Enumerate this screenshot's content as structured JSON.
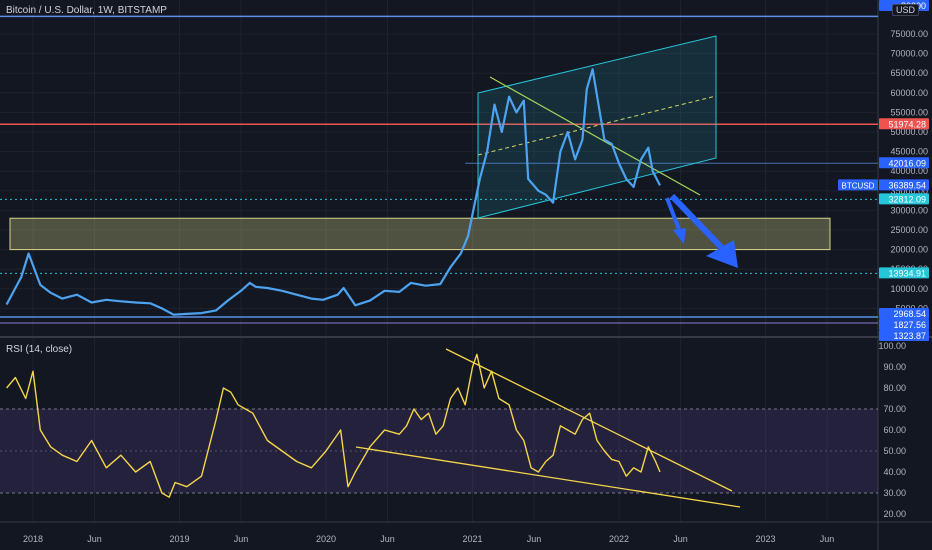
{
  "header": {
    "title": "Bitcoin / U.S. Dollar, 1W, BITSTAMP",
    "currency": "USD",
    "rsi_title": "RSI (14, close)"
  },
  "colors": {
    "background": "#131722",
    "price_line": "#4ea3f1",
    "rsi_line": "#f5d54a",
    "rsi_band": "#7e57c2",
    "channel": "#26c6da",
    "support_zone": "#c2c07a",
    "arrows": "#2962ff",
    "resistance": "#ef5350",
    "dotted_level": "#26c6da",
    "trendline": "#a5d65a"
  },
  "chart_data": [
    {
      "type": "line",
      "title": "Bitcoin / U.S. Dollar, 1W, BITSTAMP",
      "series": [
        {
          "name": "BTCUSD",
          "x": [
            2017.82,
            2017.92,
            2017.97,
            2018.05,
            2018.12,
            2018.2,
            2018.3,
            2018.4,
            2018.5,
            2018.6,
            2018.7,
            2018.8,
            2018.88,
            2018.96,
            2019.05,
            2019.15,
            2019.25,
            2019.33,
            2019.42,
            2019.48,
            2019.52,
            2019.6,
            2019.7,
            2019.8,
            2019.9,
            2019.98,
            2020.08,
            2020.12,
            2020.2,
            2020.3,
            2020.4,
            2020.5,
            2020.58,
            2020.68,
            2020.78,
            2020.85,
            2020.92,
            2020.97,
            2021.0,
            2021.05,
            2021.1,
            2021.15,
            2021.2,
            2021.25,
            2021.3,
            2021.35,
            2021.38,
            2021.45,
            2021.5,
            2021.55,
            2021.6,
            2021.65,
            2021.7,
            2021.75,
            2021.78,
            2021.82,
            2021.86,
            2021.9,
            2021.95,
            2022.0,
            2022.05,
            2022.1,
            2022.15,
            2022.2,
            2022.23,
            2022.28
          ],
          "y": [
            6000,
            13000,
            19000,
            11000,
            9000,
            7500,
            8500,
            6500,
            7200,
            6800,
            6500,
            6300,
            5000,
            3400,
            3600,
            3800,
            4500,
            7000,
            9500,
            11500,
            10500,
            10200,
            9500,
            8500,
            7500,
            7200,
            8500,
            10200,
            5800,
            7000,
            9500,
            9200,
            11500,
            10800,
            11200,
            15500,
            19000,
            23500,
            29000,
            38000,
            45000,
            57000,
            50000,
            59000,
            55000,
            58000,
            38000,
            35000,
            34000,
            32000,
            45000,
            50000,
            43000,
            48000,
            61000,
            66000,
            57000,
            48000,
            47000,
            42000,
            38000,
            36000,
            43000,
            46000,
            40000,
            36389
          ]
        }
      ],
      "price_scale_labels": [
        "5000.00",
        "10000.00",
        "15000.00",
        "20000.00",
        "25000.00",
        "30000.00",
        "35000.00",
        "40000.00",
        "45000.00",
        "50000.00",
        "55000.00",
        "60000.00",
        "65000.00",
        "70000.00",
        "75000.00"
      ],
      "price_tags": [
        {
          "label": "80000",
          "color": "#2962ff"
        },
        {
          "label": "51974.28",
          "color": "#ef5350"
        },
        {
          "label": "42016.09",
          "color": "#2962ff"
        },
        {
          "label": "36389.54",
          "color": "#2962ff"
        },
        {
          "label": "32812.09",
          "color": "#26c6da"
        },
        {
          "label": "13934.91",
          "color": "#26c6da"
        },
        {
          "label": "2968.54",
          "color": "#2962ff"
        },
        {
          "label": "1827.56",
          "color": "#2962ff"
        },
        {
          "label": "1323.87",
          "color": "#2962ff"
        }
      ],
      "symbol_tag": "BTCUSD",
      "annotations": [
        "ascending channel",
        "channel midline",
        "falling trendline",
        "support zone 20000-28000",
        "resistance 51974.28",
        "level 32812.09",
        "level 13934.91",
        "projection arrows down"
      ]
    },
    {
      "type": "line",
      "title": "RSI (14, close)",
      "series": [
        {
          "name": "RSI",
          "x": [
            2017.82,
            2017.88,
            2017.95,
            2018.0,
            2018.05,
            2018.12,
            2018.2,
            2018.3,
            2018.4,
            2018.5,
            2018.6,
            2018.7,
            2018.8,
            2018.88,
            2018.93,
            2018.97,
            2019.05,
            2019.15,
            2019.25,
            2019.3,
            2019.35,
            2019.4,
            2019.45,
            2019.5,
            2019.6,
            2019.7,
            2019.8,
            2019.9,
            2020.0,
            2020.1,
            2020.15,
            2020.2,
            2020.3,
            2020.4,
            2020.5,
            2020.55,
            2020.6,
            2020.65,
            2020.7,
            2020.75,
            2020.8,
            2020.85,
            2020.9,
            2020.95,
            2021.0,
            2021.03,
            2021.08,
            2021.13,
            2021.18,
            2021.25,
            2021.3,
            2021.35,
            2021.4,
            2021.45,
            2021.5,
            2021.55,
            2021.6,
            2021.65,
            2021.7,
            2021.75,
            2021.8,
            2021.85,
            2021.9,
            2021.95,
            2022.0,
            2022.05,
            2022.1,
            2022.15,
            2022.2,
            2022.25,
            2022.28
          ],
          "y": [
            80,
            85,
            75,
            88,
            60,
            52,
            48,
            45,
            55,
            42,
            48,
            40,
            45,
            30,
            28,
            35,
            33,
            38,
            65,
            80,
            78,
            72,
            70,
            68,
            55,
            50,
            45,
            42,
            50,
            60,
            33,
            40,
            52,
            60,
            58,
            62,
            70,
            65,
            68,
            58,
            62,
            75,
            80,
            72,
            90,
            96,
            80,
            88,
            75,
            72,
            60,
            55,
            42,
            40,
            45,
            48,
            62,
            60,
            58,
            65,
            68,
            55,
            50,
            46,
            45,
            38,
            42,
            40,
            52,
            45,
            40
          ]
        }
      ],
      "ylim": [
        20,
        100
      ],
      "tick_labels": [
        "20.00",
        "30.00",
        "40.00",
        "50.00",
        "60.00",
        "70.00",
        "80.00",
        "90.00",
        "100.00"
      ],
      "band": [
        30,
        70
      ]
    }
  ],
  "x_axis": {
    "labels": [
      {
        "text": "2018",
        "x": 2018.0
      },
      {
        "text": "Jun",
        "x": 2018.42
      },
      {
        "text": "2019",
        "x": 2019.0
      },
      {
        "text": "Jun",
        "x": 2019.42
      },
      {
        "text": "2020",
        "x": 2020.0
      },
      {
        "text": "Jun",
        "x": 2020.42
      },
      {
        "text": "2021",
        "x": 2021.0
      },
      {
        "text": "Jun",
        "x": 2021.42
      },
      {
        "text": "2022",
        "x": 2022.0
      },
      {
        "text": "Jun",
        "x": 2022.42
      },
      {
        "text": "2023",
        "x": 2023.0
      },
      {
        "text": "Jun",
        "x": 2023.42
      }
    ]
  }
}
